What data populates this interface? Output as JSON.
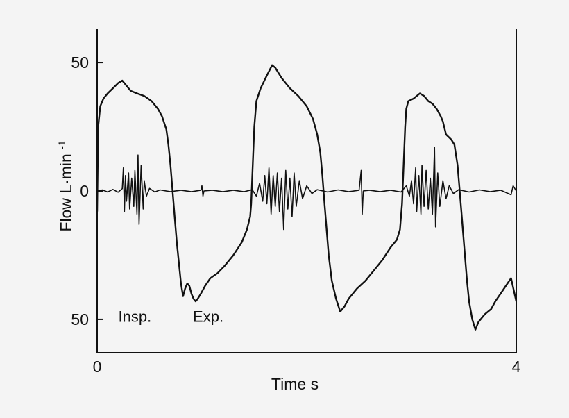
{
  "chart_data": {
    "type": "line",
    "xlabel": "Time  s",
    "ylabel_main": "Flow  L·min",
    "ylabel_sup": "-1",
    "xlim": [
      0,
      4
    ],
    "ylim": [
      -63,
      63
    ],
    "x_ticks": [
      {
        "value": 0,
        "label": "0"
      },
      {
        "value": 4,
        "label": "4"
      }
    ],
    "y_ticks": [
      {
        "value": 50,
        "label": "50"
      },
      {
        "value": 0,
        "label": "0"
      },
      {
        "value": -50,
        "label": "50"
      }
    ],
    "annotations": [
      {
        "text": "Insp.",
        "x": 0.36,
        "y": -51
      },
      {
        "text": "Exp.",
        "x": 1.06,
        "y": -51
      }
    ],
    "grid": false,
    "colors": {
      "line": "#111111",
      "background": "#f4f4f4",
      "axis": "#111111"
    },
    "series": [
      {
        "points": [
          [
            0.0,
            -8
          ],
          [
            0.01,
            25
          ],
          [
            0.03,
            33
          ],
          [
            0.06,
            36
          ],
          [
            0.1,
            38
          ],
          [
            0.15,
            40
          ],
          [
            0.2,
            42
          ],
          [
            0.24,
            43
          ],
          [
            0.28,
            41
          ],
          [
            0.32,
            39
          ],
          [
            0.38,
            38
          ],
          [
            0.45,
            37
          ],
          [
            0.52,
            35
          ],
          [
            0.58,
            32
          ],
          [
            0.62,
            29
          ],
          [
            0.66,
            24
          ],
          [
            0.68,
            18
          ],
          [
            0.7,
            10
          ],
          [
            0.72,
            0
          ],
          [
            0.74,
            -10
          ],
          [
            0.76,
            -20
          ],
          [
            0.78,
            -28
          ],
          [
            0.8,
            -36
          ],
          [
            0.82,
            -41
          ],
          [
            0.84,
            -38
          ],
          [
            0.86,
            -36
          ],
          [
            0.88,
            -37
          ],
          [
            0.9,
            -40
          ],
          [
            0.92,
            -42
          ],
          [
            0.94,
            -43
          ],
          [
            0.96,
            -42
          ],
          [
            0.99,
            -40
          ],
          [
            1.03,
            -37
          ],
          [
            1.08,
            -34
          ],
          [
            1.15,
            -32
          ],
          [
            1.22,
            -29
          ],
          [
            1.3,
            -25
          ],
          [
            1.38,
            -20
          ],
          [
            1.43,
            -15
          ],
          [
            1.46,
            -10
          ],
          [
            1.47,
            -5
          ],
          [
            1.48,
            5
          ],
          [
            1.49,
            15
          ],
          [
            1.5,
            25
          ],
          [
            1.52,
            35
          ],
          [
            1.56,
            40
          ],
          [
            1.62,
            45
          ],
          [
            1.67,
            49
          ],
          [
            1.7,
            48
          ],
          [
            1.76,
            44
          ],
          [
            1.84,
            40
          ],
          [
            1.92,
            37
          ],
          [
            2.0,
            33
          ],
          [
            2.06,
            28
          ],
          [
            2.1,
            22
          ],
          [
            2.13,
            15
          ],
          [
            2.15,
            6
          ],
          [
            2.17,
            -5
          ],
          [
            2.19,
            -15
          ],
          [
            2.21,
            -25
          ],
          [
            2.24,
            -35
          ],
          [
            2.28,
            -42
          ],
          [
            2.32,
            -47
          ],
          [
            2.36,
            -45
          ],
          [
            2.4,
            -42
          ],
          [
            2.48,
            -38
          ],
          [
            2.56,
            -35
          ],
          [
            2.64,
            -31
          ],
          [
            2.72,
            -27
          ],
          [
            2.8,
            -22
          ],
          [
            2.86,
            -19
          ],
          [
            2.89,
            -15
          ],
          [
            2.91,
            -5
          ],
          [
            2.92,
            5
          ],
          [
            2.93,
            15
          ],
          [
            2.94,
            25
          ],
          [
            2.95,
            32
          ],
          [
            2.97,
            35
          ],
          [
            3.02,
            36
          ],
          [
            3.08,
            38
          ],
          [
            3.12,
            37
          ],
          [
            3.16,
            35
          ],
          [
            3.2,
            34
          ],
          [
            3.24,
            32
          ],
          [
            3.28,
            29
          ],
          [
            3.3,
            27
          ],
          [
            3.33,
            22
          ],
          [
            3.38,
            20
          ],
          [
            3.41,
            18
          ],
          [
            3.44,
            10
          ],
          [
            3.46,
            0
          ],
          [
            3.48,
            -10
          ],
          [
            3.5,
            -20
          ],
          [
            3.53,
            -35
          ],
          [
            3.55,
            -43
          ],
          [
            3.58,
            -50
          ],
          [
            3.61,
            -54
          ],
          [
            3.64,
            -51
          ],
          [
            3.7,
            -48
          ],
          [
            3.76,
            -46
          ],
          [
            3.8,
            -43
          ],
          [
            3.85,
            -40
          ],
          [
            3.9,
            -37
          ],
          [
            3.95,
            -34
          ],
          [
            4.0,
            -43
          ]
        ]
      },
      {
        "points": [
          [
            0.0,
            0
          ],
          [
            0.05,
            0.4
          ],
          [
            0.1,
            -0.4
          ],
          [
            0.15,
            0.6
          ],
          [
            0.2,
            -0.5
          ],
          [
            0.24,
            0.9
          ],
          [
            0.25,
            9
          ],
          [
            0.26,
            -8
          ],
          [
            0.27,
            6
          ],
          [
            0.28,
            -4
          ],
          [
            0.3,
            7
          ],
          [
            0.31,
            -7
          ],
          [
            0.33,
            5
          ],
          [
            0.35,
            -6
          ],
          [
            0.36,
            8
          ],
          [
            0.38,
            -9
          ],
          [
            0.39,
            14
          ],
          [
            0.4,
            -13
          ],
          [
            0.42,
            10
          ],
          [
            0.44,
            -7
          ],
          [
            0.45,
            4
          ],
          [
            0.47,
            -2
          ],
          [
            0.5,
            1
          ],
          [
            0.55,
            -0.4
          ],
          [
            0.6,
            0.4
          ],
          [
            0.7,
            -0.3
          ],
          [
            0.8,
            0.3
          ],
          [
            0.9,
            -0.3
          ],
          [
            0.99,
            0.3
          ],
          [
            1.0,
            2
          ],
          [
            1.01,
            -2
          ],
          [
            1.02,
            0
          ],
          [
            1.1,
            0.3
          ],
          [
            1.2,
            -0.3
          ],
          [
            1.3,
            0.3
          ],
          [
            1.4,
            -0.3
          ],
          [
            1.48,
            0.5
          ],
          [
            1.52,
            -2
          ],
          [
            1.55,
            3
          ],
          [
            1.58,
            -4
          ],
          [
            1.6,
            6
          ],
          [
            1.62,
            -5
          ],
          [
            1.64,
            9
          ],
          [
            1.66,
            -9
          ],
          [
            1.68,
            6
          ],
          [
            1.7,
            -6
          ],
          [
            1.72,
            7
          ],
          [
            1.74,
            -8
          ],
          [
            1.76,
            5
          ],
          [
            1.78,
            -15
          ],
          [
            1.8,
            8
          ],
          [
            1.82,
            -7
          ],
          [
            1.84,
            5
          ],
          [
            1.86,
            -10
          ],
          [
            1.88,
            7
          ],
          [
            1.9,
            -6
          ],
          [
            1.93,
            4
          ],
          [
            1.96,
            -3
          ],
          [
            2.0,
            2
          ],
          [
            2.05,
            -1
          ],
          [
            2.1,
            0.5
          ],
          [
            2.2,
            -0.4
          ],
          [
            2.3,
            0.4
          ],
          [
            2.4,
            -0.3
          ],
          [
            2.5,
            0.3
          ],
          [
            2.52,
            8
          ],
          [
            2.53,
            -9
          ],
          [
            2.54,
            0
          ],
          [
            2.6,
            0.3
          ],
          [
            2.7,
            -0.3
          ],
          [
            2.8,
            0.3
          ],
          [
            2.9,
            -0.4
          ],
          [
            2.95,
            2
          ],
          [
            2.98,
            -2
          ],
          [
            3.0,
            4
          ],
          [
            3.02,
            -5
          ],
          [
            3.04,
            9
          ],
          [
            3.05,
            -8
          ],
          [
            3.07,
            6
          ],
          [
            3.09,
            -9
          ],
          [
            3.1,
            10
          ],
          [
            3.12,
            -6
          ],
          [
            3.14,
            8
          ],
          [
            3.16,
            -7
          ],
          [
            3.18,
            5
          ],
          [
            3.2,
            -9
          ],
          [
            3.22,
            17
          ],
          [
            3.23,
            -14
          ],
          [
            3.25,
            7
          ],
          [
            3.27,
            -6
          ],
          [
            3.3,
            4
          ],
          [
            3.33,
            -3
          ],
          [
            3.36,
            2
          ],
          [
            3.4,
            -1
          ],
          [
            3.45,
            0.5
          ],
          [
            3.55,
            -0.4
          ],
          [
            3.65,
            0.4
          ],
          [
            3.75,
            -0.3
          ],
          [
            3.85,
            0.3
          ],
          [
            3.95,
            -1.5
          ],
          [
            3.97,
            2
          ],
          [
            4.0,
            0
          ]
        ]
      }
    ]
  }
}
